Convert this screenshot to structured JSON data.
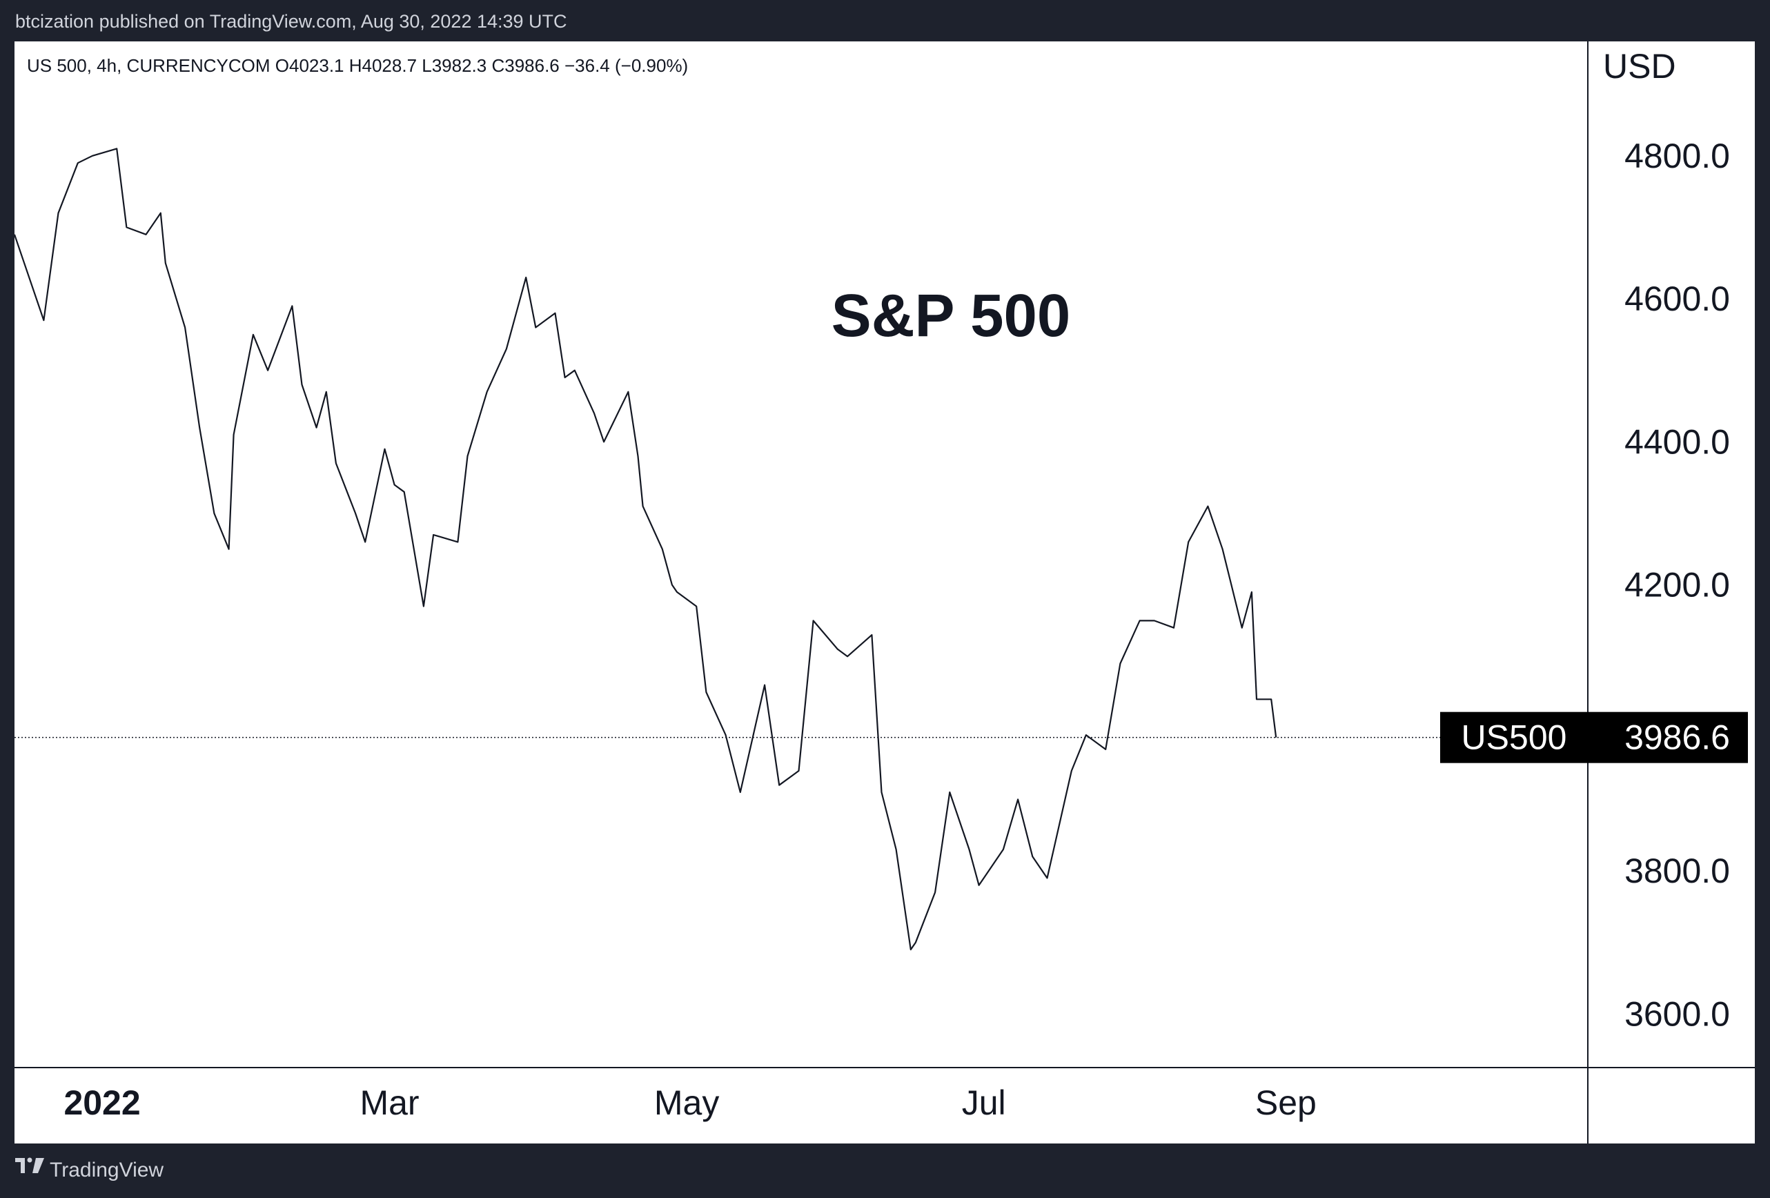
{
  "header": {
    "publisher_line": "btcization published on TradingView.com, Aug 30, 2022 14:39 UTC"
  },
  "legend": {
    "ohlc_line": "US 500, 4h, CURRENCYCOM  O4023.1  H4028.7  L3982.3  C3986.6  −36.4 (−0.90%)"
  },
  "footer": {
    "brand": "TradingView",
    "logo_icon": "tradingview-logo-icon"
  },
  "colors": {
    "frame": "#1e222d",
    "plot_background": "#ffffff",
    "line": "#131722",
    "price_tag": "#000000"
  },
  "chart_data": {
    "type": "line",
    "title": "S&P 500",
    "symbol": "US500",
    "interval": "4h",
    "currency_label": "USD",
    "last_price": 3986.6,
    "last_price_label": "3986.6",
    "ylim": [
      3525,
      4960
    ],
    "grid": false,
    "y_ticks": [
      {
        "value": 4800,
        "label": "4800.0"
      },
      {
        "value": 4600,
        "label": "4600.0"
      },
      {
        "value": 4400,
        "label": "4400.0"
      },
      {
        "value": 4200,
        "label": "4200.0"
      },
      {
        "value": 3800,
        "label": "3800.0"
      },
      {
        "value": 3600,
        "label": "3600.0"
      }
    ],
    "x_ticks": [
      {
        "date": "2022-01-01",
        "label": "2022",
        "bold": true
      },
      {
        "date": "2022-03-01",
        "label": "Mar",
        "bold": false
      },
      {
        "date": "2022-05-01",
        "label": "May",
        "bold": false
      },
      {
        "date": "2022-07-01",
        "label": "Jul",
        "bold": false
      },
      {
        "date": "2022-09-01",
        "label": "Sep",
        "bold": false
      }
    ],
    "xlim": [
      "2021-12-14",
      "2022-11-02"
    ],
    "series": [
      {
        "x": [
          "2021-12-14",
          "2021-12-16",
          "2021-12-20",
          "2021-12-23",
          "2021-12-27",
          "2021-12-30",
          "2022-01-04",
          "2022-01-06",
          "2022-01-10",
          "2022-01-13",
          "2022-01-14",
          "2022-01-18",
          "2022-01-21",
          "2022-01-24",
          "2022-01-27",
          "2022-01-28",
          "2022-02-01",
          "2022-02-04",
          "2022-02-09",
          "2022-02-11",
          "2022-02-14",
          "2022-02-16",
          "2022-02-18",
          "2022-02-22",
          "2022-02-24",
          "2022-02-28",
          "2022-03-02",
          "2022-03-04",
          "2022-03-08",
          "2022-03-10",
          "2022-03-15",
          "2022-03-17",
          "2022-03-21",
          "2022-03-25",
          "2022-03-29",
          "2022-03-31",
          "2022-04-04",
          "2022-04-06",
          "2022-04-08",
          "2022-04-12",
          "2022-04-14",
          "2022-04-19",
          "2022-04-21",
          "2022-04-22",
          "2022-04-26",
          "2022-04-28",
          "2022-04-29",
          "2022-05-03",
          "2022-05-05",
          "2022-05-09",
          "2022-05-12",
          "2022-05-17",
          "2022-05-20",
          "2022-05-24",
          "2022-05-27",
          "2022-06-01",
          "2022-06-03",
          "2022-06-08",
          "2022-06-10",
          "2022-06-13",
          "2022-06-16",
          "2022-06-17",
          "2022-06-21",
          "2022-06-24",
          "2022-06-28",
          "2022-06-30",
          "2022-07-05",
          "2022-07-08",
          "2022-07-11",
          "2022-07-14",
          "2022-07-19",
          "2022-07-22",
          "2022-07-26",
          "2022-07-29",
          "2022-08-02",
          "2022-08-05",
          "2022-08-09",
          "2022-08-12",
          "2022-08-16",
          "2022-08-19",
          "2022-08-23",
          "2022-08-25",
          "2022-08-26",
          "2022-08-29",
          "2022-08-30"
        ],
        "y": [
          4690,
          4650,
          4570,
          4720,
          4790,
          4800,
          4810,
          4700,
          4690,
          4720,
          4650,
          4560,
          4420,
          4300,
          4250,
          4410,
          4550,
          4500,
          4590,
          4480,
          4420,
          4470,
          4370,
          4300,
          4260,
          4390,
          4340,
          4330,
          4170,
          4270,
          4260,
          4380,
          4470,
          4530,
          4630,
          4560,
          4580,
          4490,
          4500,
          4440,
          4400,
          4470,
          4380,
          4310,
          4250,
          4200,
          4190,
          4170,
          4050,
          3990,
          3910,
          4060,
          3920,
          3940,
          4150,
          4110,
          4100,
          4130,
          3910,
          3830,
          3690,
          3700,
          3770,
          3910,
          3830,
          3780,
          3830,
          3900,
          3820,
          3790,
          3940,
          3990,
          3970,
          4090,
          4150,
          4150,
          4140,
          4260,
          4310,
          4250,
          4140,
          4190,
          4040,
          4040,
          3986.6
        ]
      }
    ]
  }
}
